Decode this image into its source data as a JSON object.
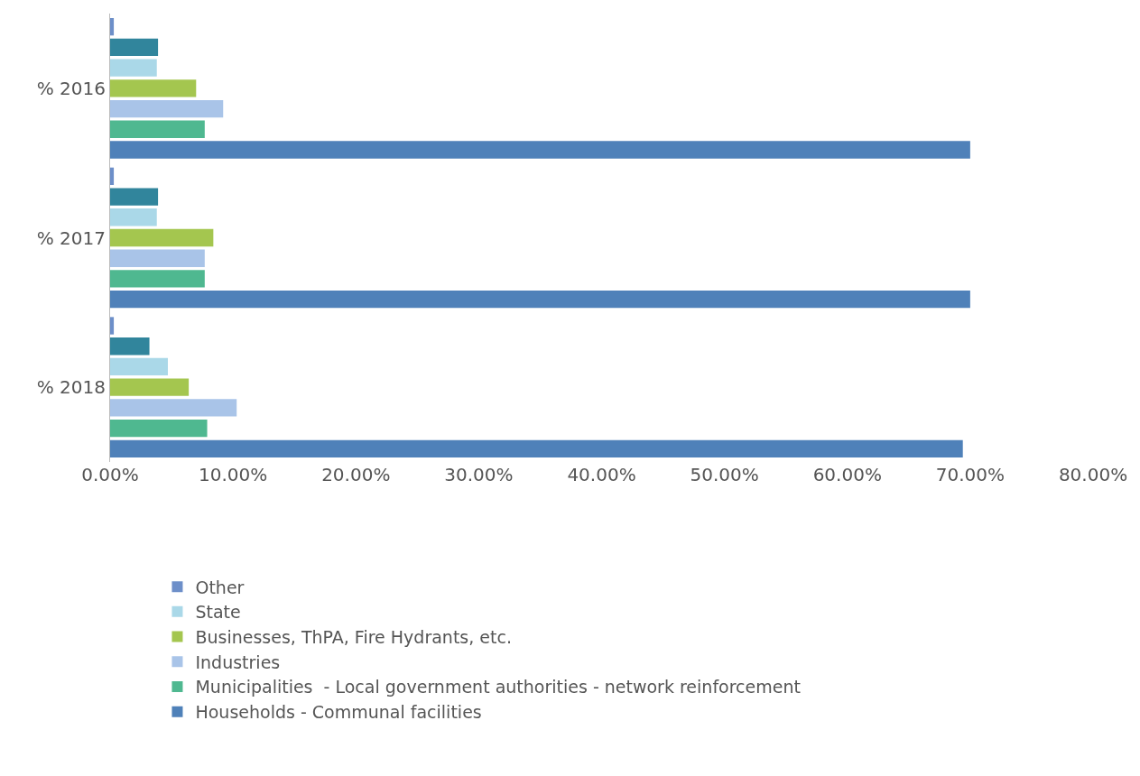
{
  "chart_data": {
    "type": "bar",
    "orientation": "horizontal",
    "categories": [
      "% 2016",
      "% 2017",
      "% 2018"
    ],
    "series": [
      {
        "name": "Other",
        "color": "#6d8fc9",
        "values": [
          0.3,
          0.3,
          0.3
        ]
      },
      {
        "color": "#31859c",
        "values": [
          3.9,
          3.9,
          3.2
        ]
      },
      {
        "name": "State",
        "color": "#aad8e8",
        "values": [
          3.8,
          3.8,
          4.7
        ]
      },
      {
        "name": "Businesses, ThPA, Fire Hydrants, etc.",
        "color": "#a4c64f",
        "values": [
          7.0,
          8.4,
          6.4
        ]
      },
      {
        "name": "Industries",
        "color": "#a9c4e8",
        "values": [
          9.2,
          7.7,
          10.3
        ]
      },
      {
        "name": "Municipalities  - Local government authorities - network reinforcement",
        "color": "#4fb890",
        "values": [
          7.7,
          7.7,
          7.9
        ]
      },
      {
        "name": "Households - Communal facilities",
        "color": "#4f81b9",
        "values": [
          70.0,
          70.0,
          69.4
        ]
      }
    ],
    "xlim": [
      0,
      80
    ],
    "xticks": [
      {
        "value": 0,
        "label": "0.00%"
      },
      {
        "value": 10,
        "label": "10.00%"
      },
      {
        "value": 20,
        "label": "20.00%"
      },
      {
        "value": 30,
        "label": "30.00%"
      },
      {
        "value": 40,
        "label": "40.00%"
      },
      {
        "value": 50,
        "label": "50.00%"
      },
      {
        "value": 60,
        "label": "60.00%"
      },
      {
        "value": 70,
        "label": "70.00%"
      },
      {
        "value": 80,
        "label": "80.00%"
      }
    ],
    "grid": false,
    "legend": "bottom"
  }
}
